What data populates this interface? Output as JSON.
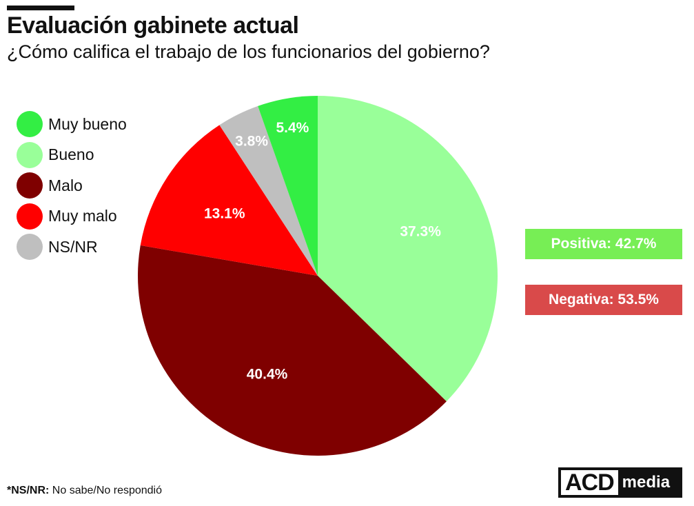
{
  "header": {
    "title": "Evaluación gabinete actual",
    "subtitle": "¿Cómo califica el trabajo de los funcionarios del gobierno?"
  },
  "chart_data": {
    "type": "pie",
    "title": "Evaluación gabinete actual",
    "subtitle": "¿Cómo califica el trabajo de los funcionarios del gobierno?",
    "slices": [
      {
        "name": "Bueno",
        "value": 37.3,
        "label": "37.3%",
        "color": "#99ff99"
      },
      {
        "name": "Malo",
        "value": 40.4,
        "label": "40.4%",
        "color": "#7f0000"
      },
      {
        "name": "Muy malo",
        "value": 13.1,
        "label": "13.1%",
        "color": "#ff0000"
      },
      {
        "name": "NS/NR",
        "value": 3.8,
        "label": "3.8%",
        "color": "#bfbfbf"
      },
      {
        "name": "Muy bueno",
        "value": 5.4,
        "label": "5.4%",
        "color": "#33ee44"
      }
    ],
    "legend": {
      "placement": "left",
      "items": [
        {
          "label": "Muy bueno",
          "color": "#33ee44"
        },
        {
          "label": "Bueno",
          "color": "#99ff99"
        },
        {
          "label": "Malo",
          "color": "#7f0000"
        },
        {
          "label": "Muy malo",
          "color": "#ff0000"
        },
        {
          "label": "NS/NR",
          "color": "#bfbfbf"
        }
      ]
    },
    "start_direction": "top, clockwise"
  },
  "summary": {
    "positive": {
      "label": "Positiva: 42.7%",
      "color": "#77ee55"
    },
    "negative": {
      "label": "Negativa: 53.5%",
      "color": "#d94a4a"
    }
  },
  "footnote": {
    "term": "*NS/NR:",
    "text": "No sabe/No respondió"
  },
  "logo": {
    "acd": "ACD",
    "media": "media"
  }
}
